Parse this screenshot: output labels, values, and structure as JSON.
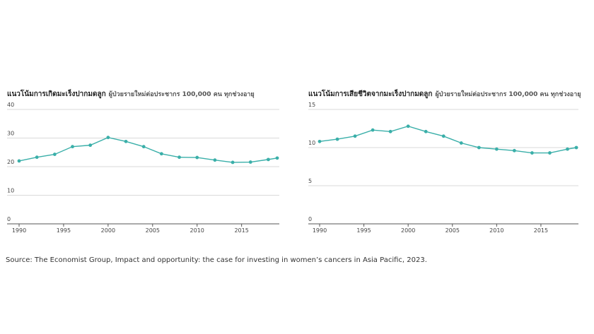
{
  "chart_data": [
    {
      "type": "line",
      "title": "แนวโน้มการเกิดมะเร็งปากมดลูก",
      "subtitle": "ผู้ป่วยรายใหม่ต่อประชากร 100,000 คน ทุกช่วงอายุ",
      "x": [
        1990,
        1992,
        1994,
        1996,
        1998,
        2000,
        2002,
        2004,
        2006,
        2008,
        2010,
        2012,
        2014,
        2016,
        2018,
        2019
      ],
      "series": [
        {
          "color": "#3aafa9",
          "values": [
            22,
            23.3,
            24.3,
            27,
            27.5,
            30.2,
            28.8,
            27,
            24.5,
            23.3,
            23.2,
            22.3,
            21.5,
            21.6,
            22.5,
            23
          ]
        }
      ],
      "xlim": [
        1990,
        2019
      ],
      "xticks": [
        1990,
        1995,
        2000,
        2005,
        2010,
        2015
      ],
      "ylim": [
        0,
        40
      ],
      "yticks": [
        0,
        10,
        20,
        30,
        40
      ],
      "grid": true
    },
    {
      "type": "line",
      "title": "แนวโน้มการเสียชีวิตจากมะเร็งปากมดลูก",
      "subtitle": "ผู้ป่วยรายใหม่ต่อประชากร 100,000 คน ทุกช่วงอายุ",
      "x": [
        1990,
        1992,
        1994,
        1996,
        1998,
        2000,
        2002,
        2004,
        2006,
        2008,
        2010,
        2012,
        2014,
        2016,
        2018,
        2019
      ],
      "series": [
        {
          "color": "#3aafa9",
          "values": [
            10.8,
            11.1,
            11.5,
            12.3,
            12.1,
            12.8,
            12.1,
            11.5,
            10.6,
            10,
            9.8,
            9.6,
            9.3,
            9.3,
            9.8,
            10
          ]
        }
      ],
      "xlim": [
        1990,
        2019
      ],
      "xticks": [
        1990,
        1995,
        2000,
        2005,
        2010,
        2015
      ],
      "ylim": [
        0,
        15
      ],
      "yticks": [
        0,
        5,
        10,
        15
      ],
      "grid": true
    }
  ],
  "source": "Source: The Economist Group, Impact and opportunity: the case for investing in women’s cancers in Asia Pacific, 2023."
}
